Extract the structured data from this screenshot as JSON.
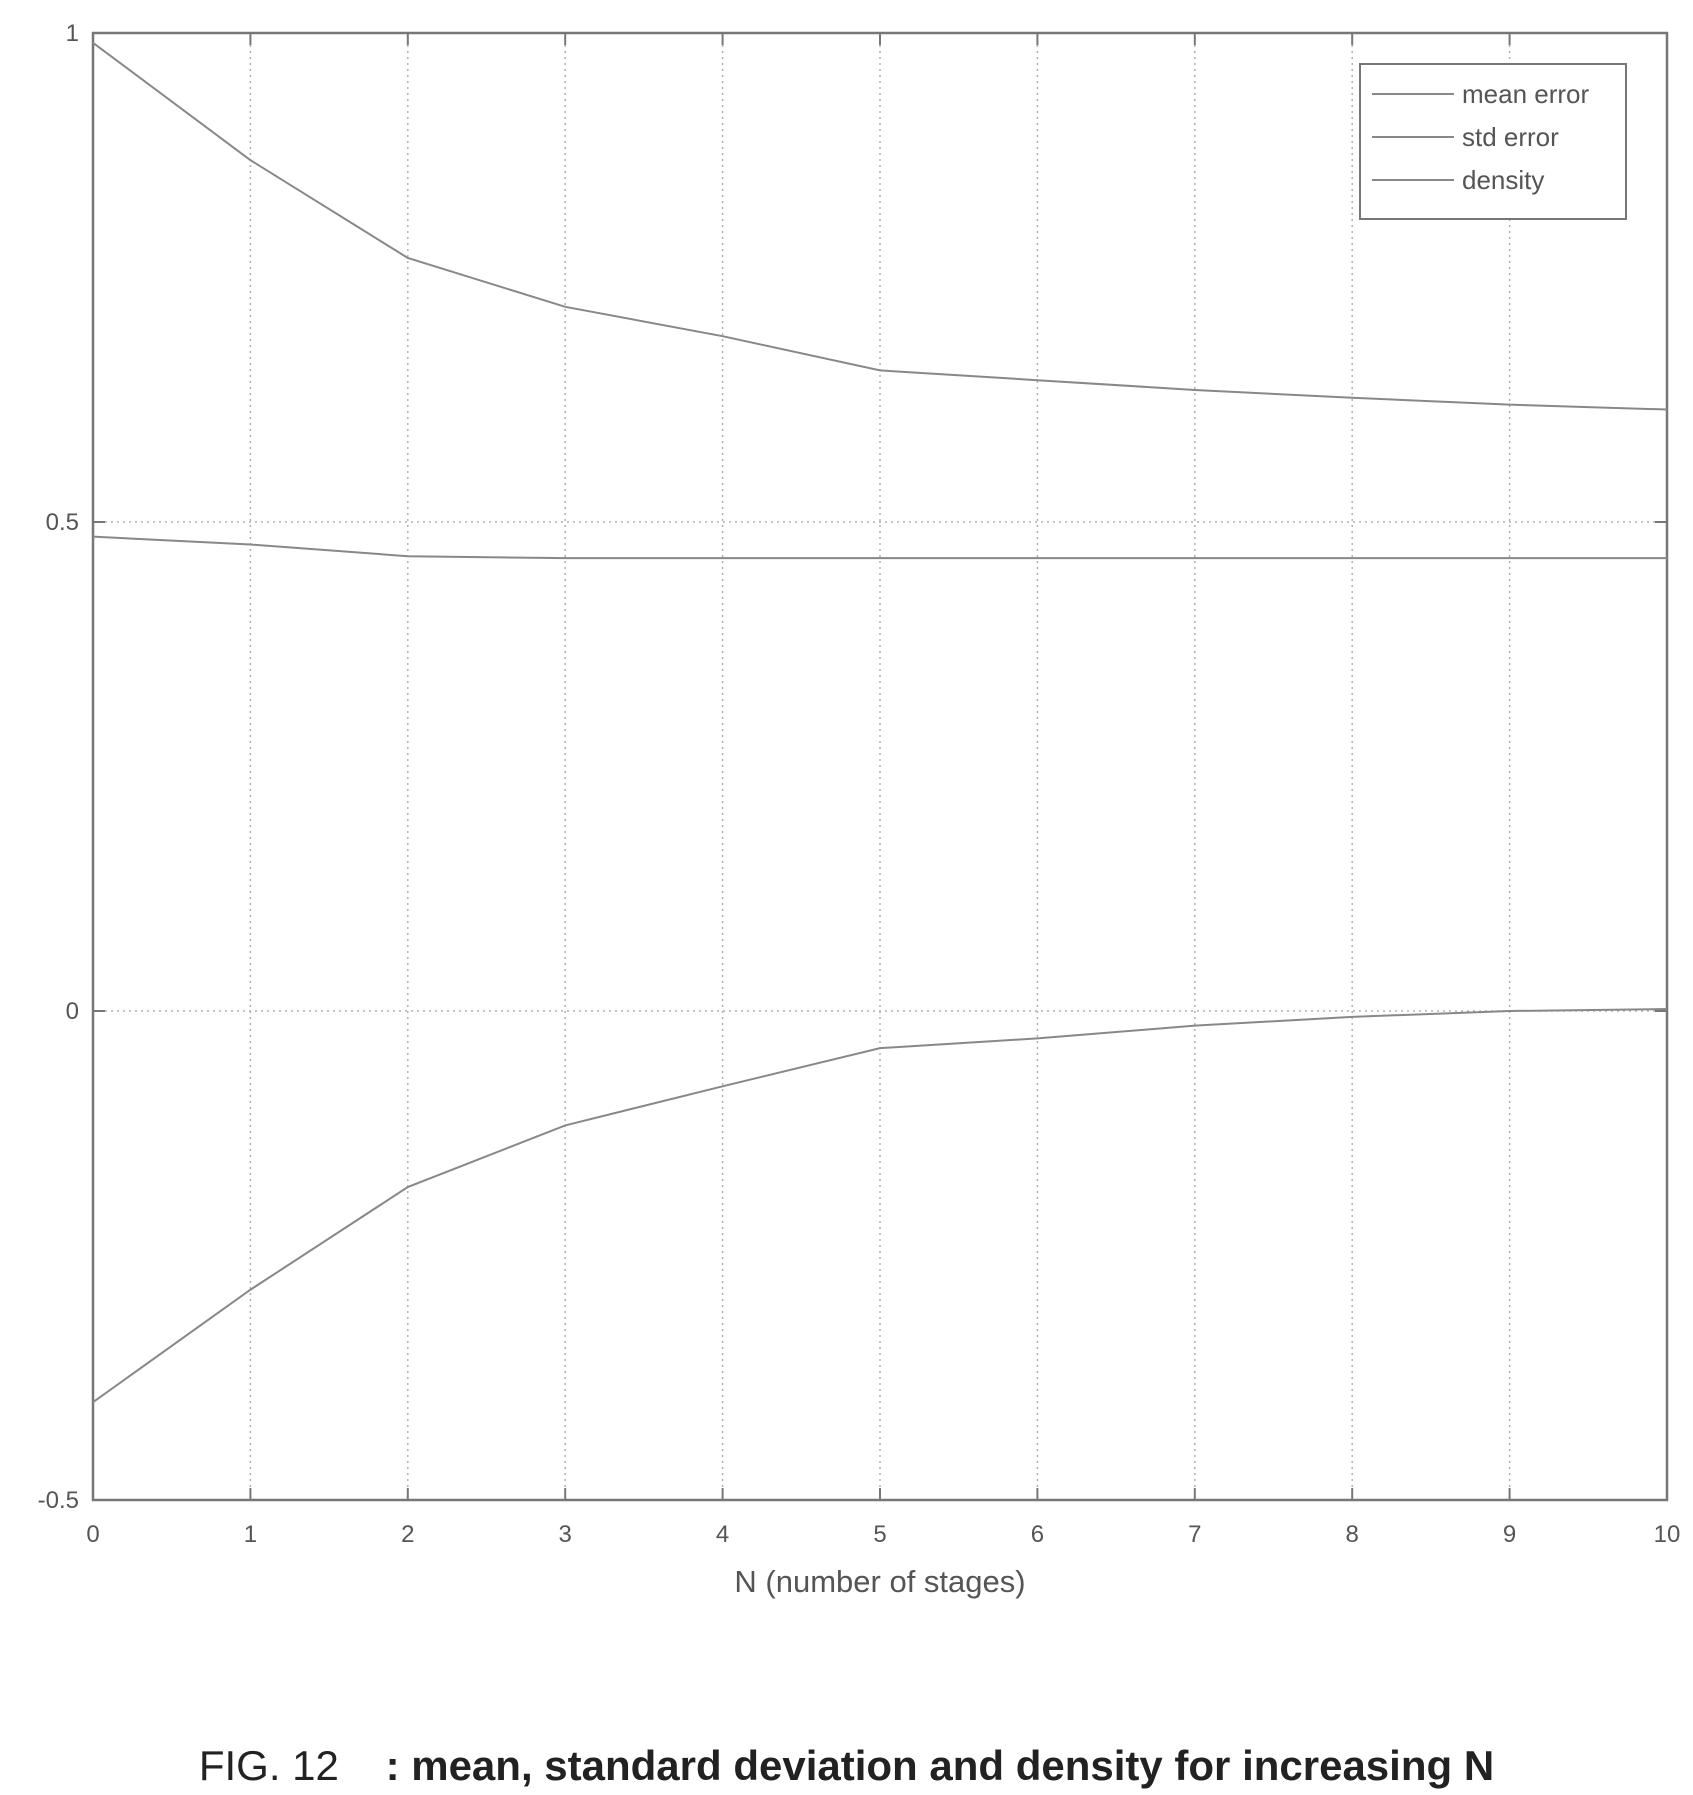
{
  "chart_data": {
    "type": "line",
    "title": "",
    "xlabel": "N (number of stages)",
    "ylabel": "",
    "xlim": [
      0,
      10
    ],
    "ylim": [
      -0.5,
      1
    ],
    "xticks": [
      "0",
      "1",
      "2",
      "3",
      "4",
      "5",
      "6",
      "7",
      "8",
      "9",
      "10"
    ],
    "yticks": [
      "-0.5",
      "0",
      "0.5",
      "1"
    ],
    "grid": true,
    "legend_position": "top-right",
    "x": [
      0,
      1,
      2,
      3,
      4,
      5,
      6,
      7,
      8,
      9,
      10
    ],
    "series": [
      {
        "name": "mean error",
        "values": [
          -0.4,
          -0.285,
          -0.18,
          -0.117,
          -0.077,
          -0.038,
          -0.028,
          -0.015,
          -0.006,
          0.0,
          0.002
        ]
      },
      {
        "name": "std error",
        "values": [
          0.99,
          0.87,
          0.77,
          0.72,
          0.69,
          0.655,
          0.645,
          0.635,
          0.627,
          0.62,
          0.615
        ]
      },
      {
        "name": "density",
        "values": [
          0.485,
          0.477,
          0.465,
          0.463,
          0.463,
          0.463,
          0.463,
          0.463,
          0.463,
          0.463,
          0.463
        ]
      }
    ],
    "colors": {
      "lines": "#888888",
      "axes": "#777777",
      "grid": "#b0b0b0",
      "text": "#555555"
    }
  },
  "caption": {
    "figure_number": "FIG. 12",
    "description": ": mean, standard deviation and density for increasing N"
  }
}
